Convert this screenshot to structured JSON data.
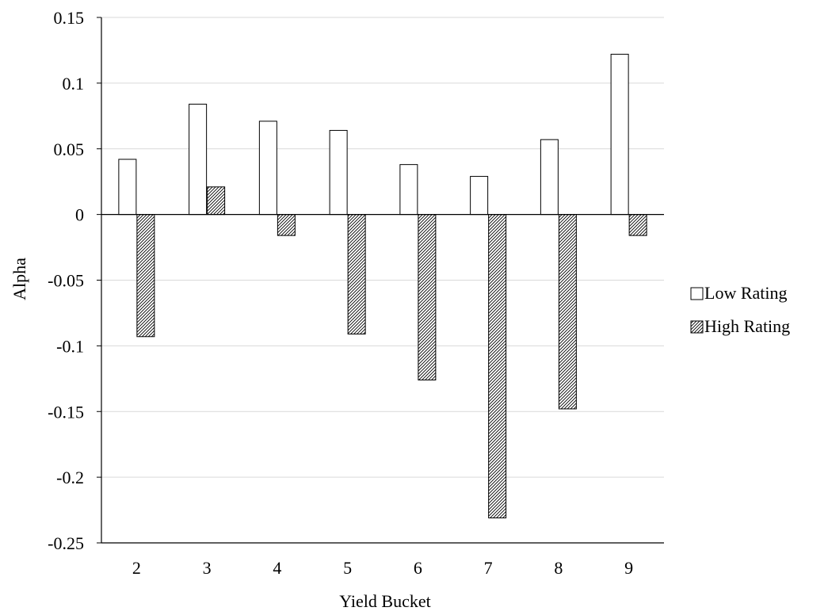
{
  "chart_data": {
    "type": "bar",
    "title": "",
    "xlabel": "Yield Bucket",
    "ylabel": "Alpha",
    "categories": [
      "2",
      "3",
      "4",
      "5",
      "6",
      "7",
      "8",
      "9"
    ],
    "series": [
      {
        "name": "Low Rating",
        "fill": "#ffffff",
        "pattern": "none",
        "values": [
          0.042,
          0.084,
          0.071,
          0.064,
          0.038,
          0.029,
          0.057,
          0.122
        ]
      },
      {
        "name": "High Rating",
        "fill": "#ffffff",
        "pattern": "diagonal-hatch",
        "values": [
          -0.093,
          0.021,
          -0.016,
          -0.091,
          -0.126,
          -0.231,
          -0.148,
          -0.016
        ]
      }
    ],
    "ylim": [
      -0.25,
      0.15
    ],
    "yticks": [
      0.15,
      0.1,
      0.05,
      0,
      -0.05,
      -0.1,
      -0.15,
      -0.2,
      -0.25
    ],
    "ytick_labels": [
      "0.15",
      "0.1",
      "0.05",
      "0",
      "-0.05",
      "-0.1",
      "-0.15",
      "-0.2",
      "-0.25"
    ],
    "grid": true,
    "legend_position": "right",
    "colors": {
      "grid": "#d9d9d9",
      "axis": "#000000",
      "bar_stroke": "#000000"
    }
  }
}
